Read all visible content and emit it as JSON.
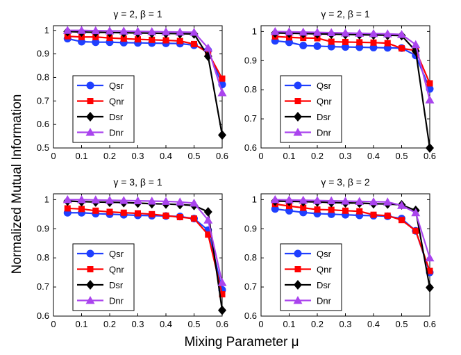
{
  "figure": {
    "ylabel": "Normalized Mutual Information",
    "xlabel": "Mixing Parameter μ"
  },
  "chart_data": [
    {
      "type": "line",
      "title": "γ = 2, β = 1",
      "xlim": [
        0,
        0.6
      ],
      "ylim": [
        0.5,
        1.02
      ],
      "xticks": [
        "0",
        "0.1",
        "0.2",
        "0.3",
        "0.4",
        "0.5",
        "0.6"
      ],
      "yticks": [
        "0.5",
        "0.6",
        "0.7",
        "0.8",
        "0.9",
        "1"
      ],
      "ytick_values": [
        0.5,
        0.6,
        0.7,
        0.8,
        0.9,
        1.0
      ],
      "legend": "lower-left",
      "x": [
        0.05,
        0.1,
        0.15,
        0.2,
        0.25,
        0.3,
        0.35,
        0.4,
        0.45,
        0.5,
        0.55,
        0.6
      ],
      "series": [
        {
          "name": "Qsr",
          "color": "#1f3fff",
          "marker": "circle",
          "values": [
            0.965,
            0.952,
            0.95,
            0.95,
            0.948,
            0.947,
            0.946,
            0.945,
            0.944,
            0.937,
            0.915,
            0.77
          ]
        },
        {
          "name": "Qnr",
          "color": "#ff0000",
          "marker": "square",
          "values": [
            0.975,
            0.972,
            0.972,
            0.968,
            0.965,
            0.962,
            0.96,
            0.958,
            0.955,
            0.942,
            0.905,
            0.795
          ]
        },
        {
          "name": "Dsr",
          "color": "#000000",
          "marker": "diamond",
          "values": [
            0.995,
            0.993,
            0.992,
            0.991,
            0.99,
            0.989,
            0.988,
            0.987,
            0.986,
            0.985,
            0.89,
            0.555
          ]
        },
        {
          "name": "Dnr",
          "color": "#aa44ee",
          "marker": "triangle",
          "values": [
            1.0,
            1.0,
            0.999,
            0.998,
            0.997,
            0.996,
            0.995,
            0.994,
            0.993,
            0.992,
            0.925,
            0.735
          ]
        }
      ]
    },
    {
      "type": "line",
      "title": "γ = 2, β = 1",
      "xlim": [
        0,
        0.6
      ],
      "ylim": [
        0.6,
        1.02
      ],
      "xticks": [
        "0",
        "0.1",
        "0.2",
        "0.3",
        "0.4",
        "0.5",
        "0.6"
      ],
      "yticks": [
        "0.6",
        "0.7",
        "0.8",
        "0.9",
        "1"
      ],
      "ytick_values": [
        0.6,
        0.7,
        0.8,
        0.9,
        1.0
      ],
      "legend": "lower-left",
      "x": [
        0.05,
        0.1,
        0.15,
        0.2,
        0.25,
        0.3,
        0.35,
        0.4,
        0.45,
        0.5,
        0.55,
        0.6
      ],
      "series": [
        {
          "name": "Qsr",
          "color": "#1f3fff",
          "marker": "circle",
          "values": [
            0.968,
            0.963,
            0.952,
            0.95,
            0.948,
            0.947,
            0.946,
            0.945,
            0.944,
            0.943,
            0.918,
            0.803
          ]
        },
        {
          "name": "Qnr",
          "color": "#ff0000",
          "marker": "square",
          "values": [
            0.983,
            0.98,
            0.978,
            0.977,
            0.965,
            0.964,
            0.963,
            0.962,
            0.96,
            0.942,
            0.935,
            0.822
          ]
        },
        {
          "name": "Dsr",
          "color": "#000000",
          "marker": "diamond",
          "values": [
            0.995,
            0.994,
            0.993,
            0.992,
            0.991,
            0.99,
            0.989,
            0.988,
            0.987,
            0.986,
            0.933,
            0.6
          ]
        },
        {
          "name": "Dnr",
          "color": "#aa44ee",
          "marker": "triangle",
          "values": [
            1.0,
            0.999,
            0.998,
            0.997,
            0.996,
            0.995,
            0.994,
            0.993,
            0.992,
            0.99,
            0.955,
            0.765
          ]
        }
      ]
    },
    {
      "type": "line",
      "title": "γ = 3, β = 1",
      "xlim": [
        0,
        0.6
      ],
      "ylim": [
        0.6,
        1.02
      ],
      "xticks": [
        "0",
        "0.1",
        "0.2",
        "0.3",
        "0.4",
        "0.5",
        "0.6"
      ],
      "yticks": [
        "0.6",
        "0.7",
        "0.8",
        "0.9",
        "1"
      ],
      "ytick_values": [
        0.6,
        0.7,
        0.8,
        0.9,
        1.0
      ],
      "legend": "lower-left",
      "x": [
        0.05,
        0.1,
        0.15,
        0.2,
        0.25,
        0.3,
        0.35,
        0.4,
        0.45,
        0.5,
        0.55,
        0.6
      ],
      "series": [
        {
          "name": "Qsr",
          "color": "#1f3fff",
          "marker": "circle",
          "values": [
            0.955,
            0.955,
            0.952,
            0.95,
            0.948,
            0.946,
            0.945,
            0.944,
            0.942,
            0.935,
            0.895,
            0.69
          ]
        },
        {
          "name": "Qnr",
          "color": "#ff0000",
          "marker": "square",
          "values": [
            0.97,
            0.968,
            0.962,
            0.958,
            0.955,
            0.953,
            0.95,
            0.945,
            0.94,
            0.935,
            0.88,
            0.675
          ]
        },
        {
          "name": "Dsr",
          "color": "#000000",
          "marker": "diamond",
          "values": [
            0.995,
            0.993,
            0.992,
            0.991,
            0.99,
            0.988,
            0.986,
            0.985,
            0.983,
            0.98,
            0.958,
            0.62
          ]
        },
        {
          "name": "Dnr",
          "color": "#aa44ee",
          "marker": "triangle",
          "values": [
            1.0,
            1.0,
            0.999,
            0.998,
            0.997,
            0.996,
            0.995,
            0.994,
            0.992,
            0.988,
            0.93,
            0.715
          ]
        }
      ]
    },
    {
      "type": "line",
      "title": "γ = 3, β = 2",
      "xlim": [
        0,
        0.6
      ],
      "ylim": [
        0.6,
        1.02
      ],
      "xticks": [
        "0",
        "0.1",
        "0.2",
        "0.3",
        "0.4",
        "0.5",
        "0.6"
      ],
      "yticks": [
        "0.6",
        "0.7",
        "0.8",
        "0.9",
        "1"
      ],
      "ytick_values": [
        0.6,
        0.7,
        0.8,
        0.9,
        1.0
      ],
      "legend": "lower-left",
      "x": [
        0.05,
        0.1,
        0.15,
        0.2,
        0.25,
        0.3,
        0.35,
        0.4,
        0.45,
        0.5,
        0.55,
        0.6
      ],
      "series": [
        {
          "name": "Qsr",
          "color": "#1f3fff",
          "marker": "circle",
          "values": [
            0.968,
            0.962,
            0.956,
            0.952,
            0.95,
            0.948,
            0.946,
            0.945,
            0.943,
            0.935,
            0.893,
            0.75
          ]
        },
        {
          "name": "Qnr",
          "color": "#ff0000",
          "marker": "square",
          "values": [
            0.985,
            0.978,
            0.972,
            0.966,
            0.965,
            0.962,
            0.96,
            0.948,
            0.945,
            0.93,
            0.893,
            0.755
          ]
        },
        {
          "name": "Dsr",
          "color": "#000000",
          "marker": "diamond",
          "values": [
            0.995,
            0.994,
            0.993,
            0.992,
            0.99,
            0.989,
            0.988,
            0.986,
            0.985,
            0.982,
            0.963,
            0.698
          ]
        },
        {
          "name": "Dnr",
          "color": "#aa44ee",
          "marker": "triangle",
          "values": [
            1.0,
            0.999,
            0.998,
            0.997,
            0.996,
            0.995,
            0.994,
            0.993,
            0.992,
            0.98,
            0.955,
            0.8
          ]
        }
      ]
    }
  ]
}
